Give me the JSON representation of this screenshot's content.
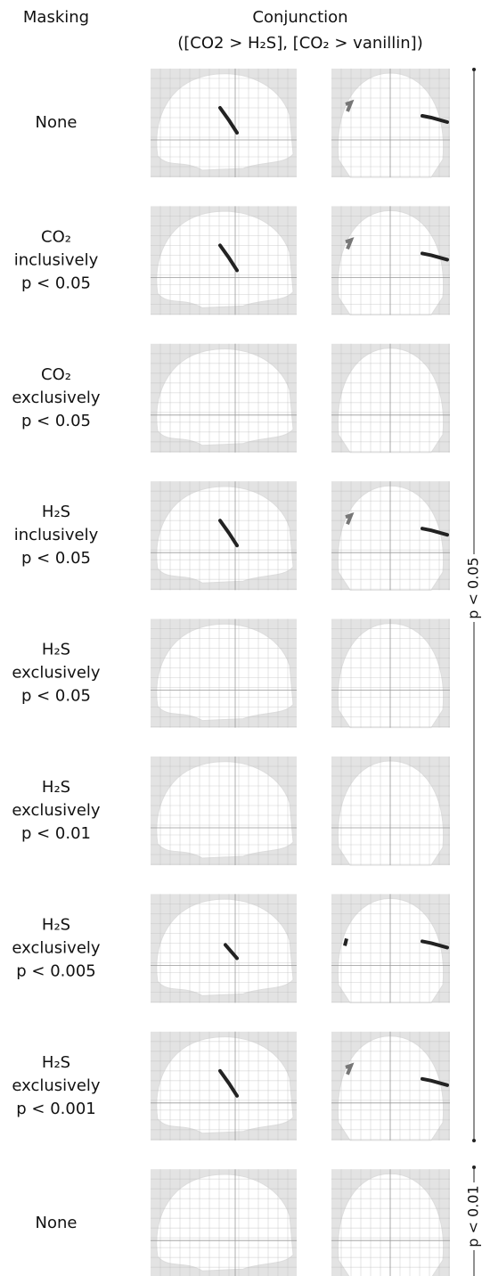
{
  "header": {
    "masking": "Masking",
    "conjunction": "Conjunction",
    "contrast": "([CO2 > H₂S], [CO₂ > vanillin])"
  },
  "rows": [
    {
      "label": [
        "None"
      ]
    },
    {
      "label": [
        "CO₂",
        "inclusively",
        "p < 0.05"
      ]
    },
    {
      "label": [
        "CO₂",
        "exclusively",
        "p < 0.05"
      ]
    },
    {
      "label": [
        "H₂S",
        "inclusively",
        "p < 0.05"
      ]
    },
    {
      "label": [
        "H₂S",
        "exclusively",
        "p < 0.05"
      ]
    },
    {
      "label": [
        "H₂S",
        "exclusively",
        "p < 0.01"
      ]
    },
    {
      "label": [
        "H₂S",
        "exclusively",
        "p < 0.005"
      ]
    },
    {
      "label": [
        "H₂S",
        "exclusively",
        "p < 0.001"
      ]
    },
    {
      "label": [
        "None"
      ]
    }
  ],
  "brackets": [
    "p < 0.05",
    "p < 0.01"
  ]
}
